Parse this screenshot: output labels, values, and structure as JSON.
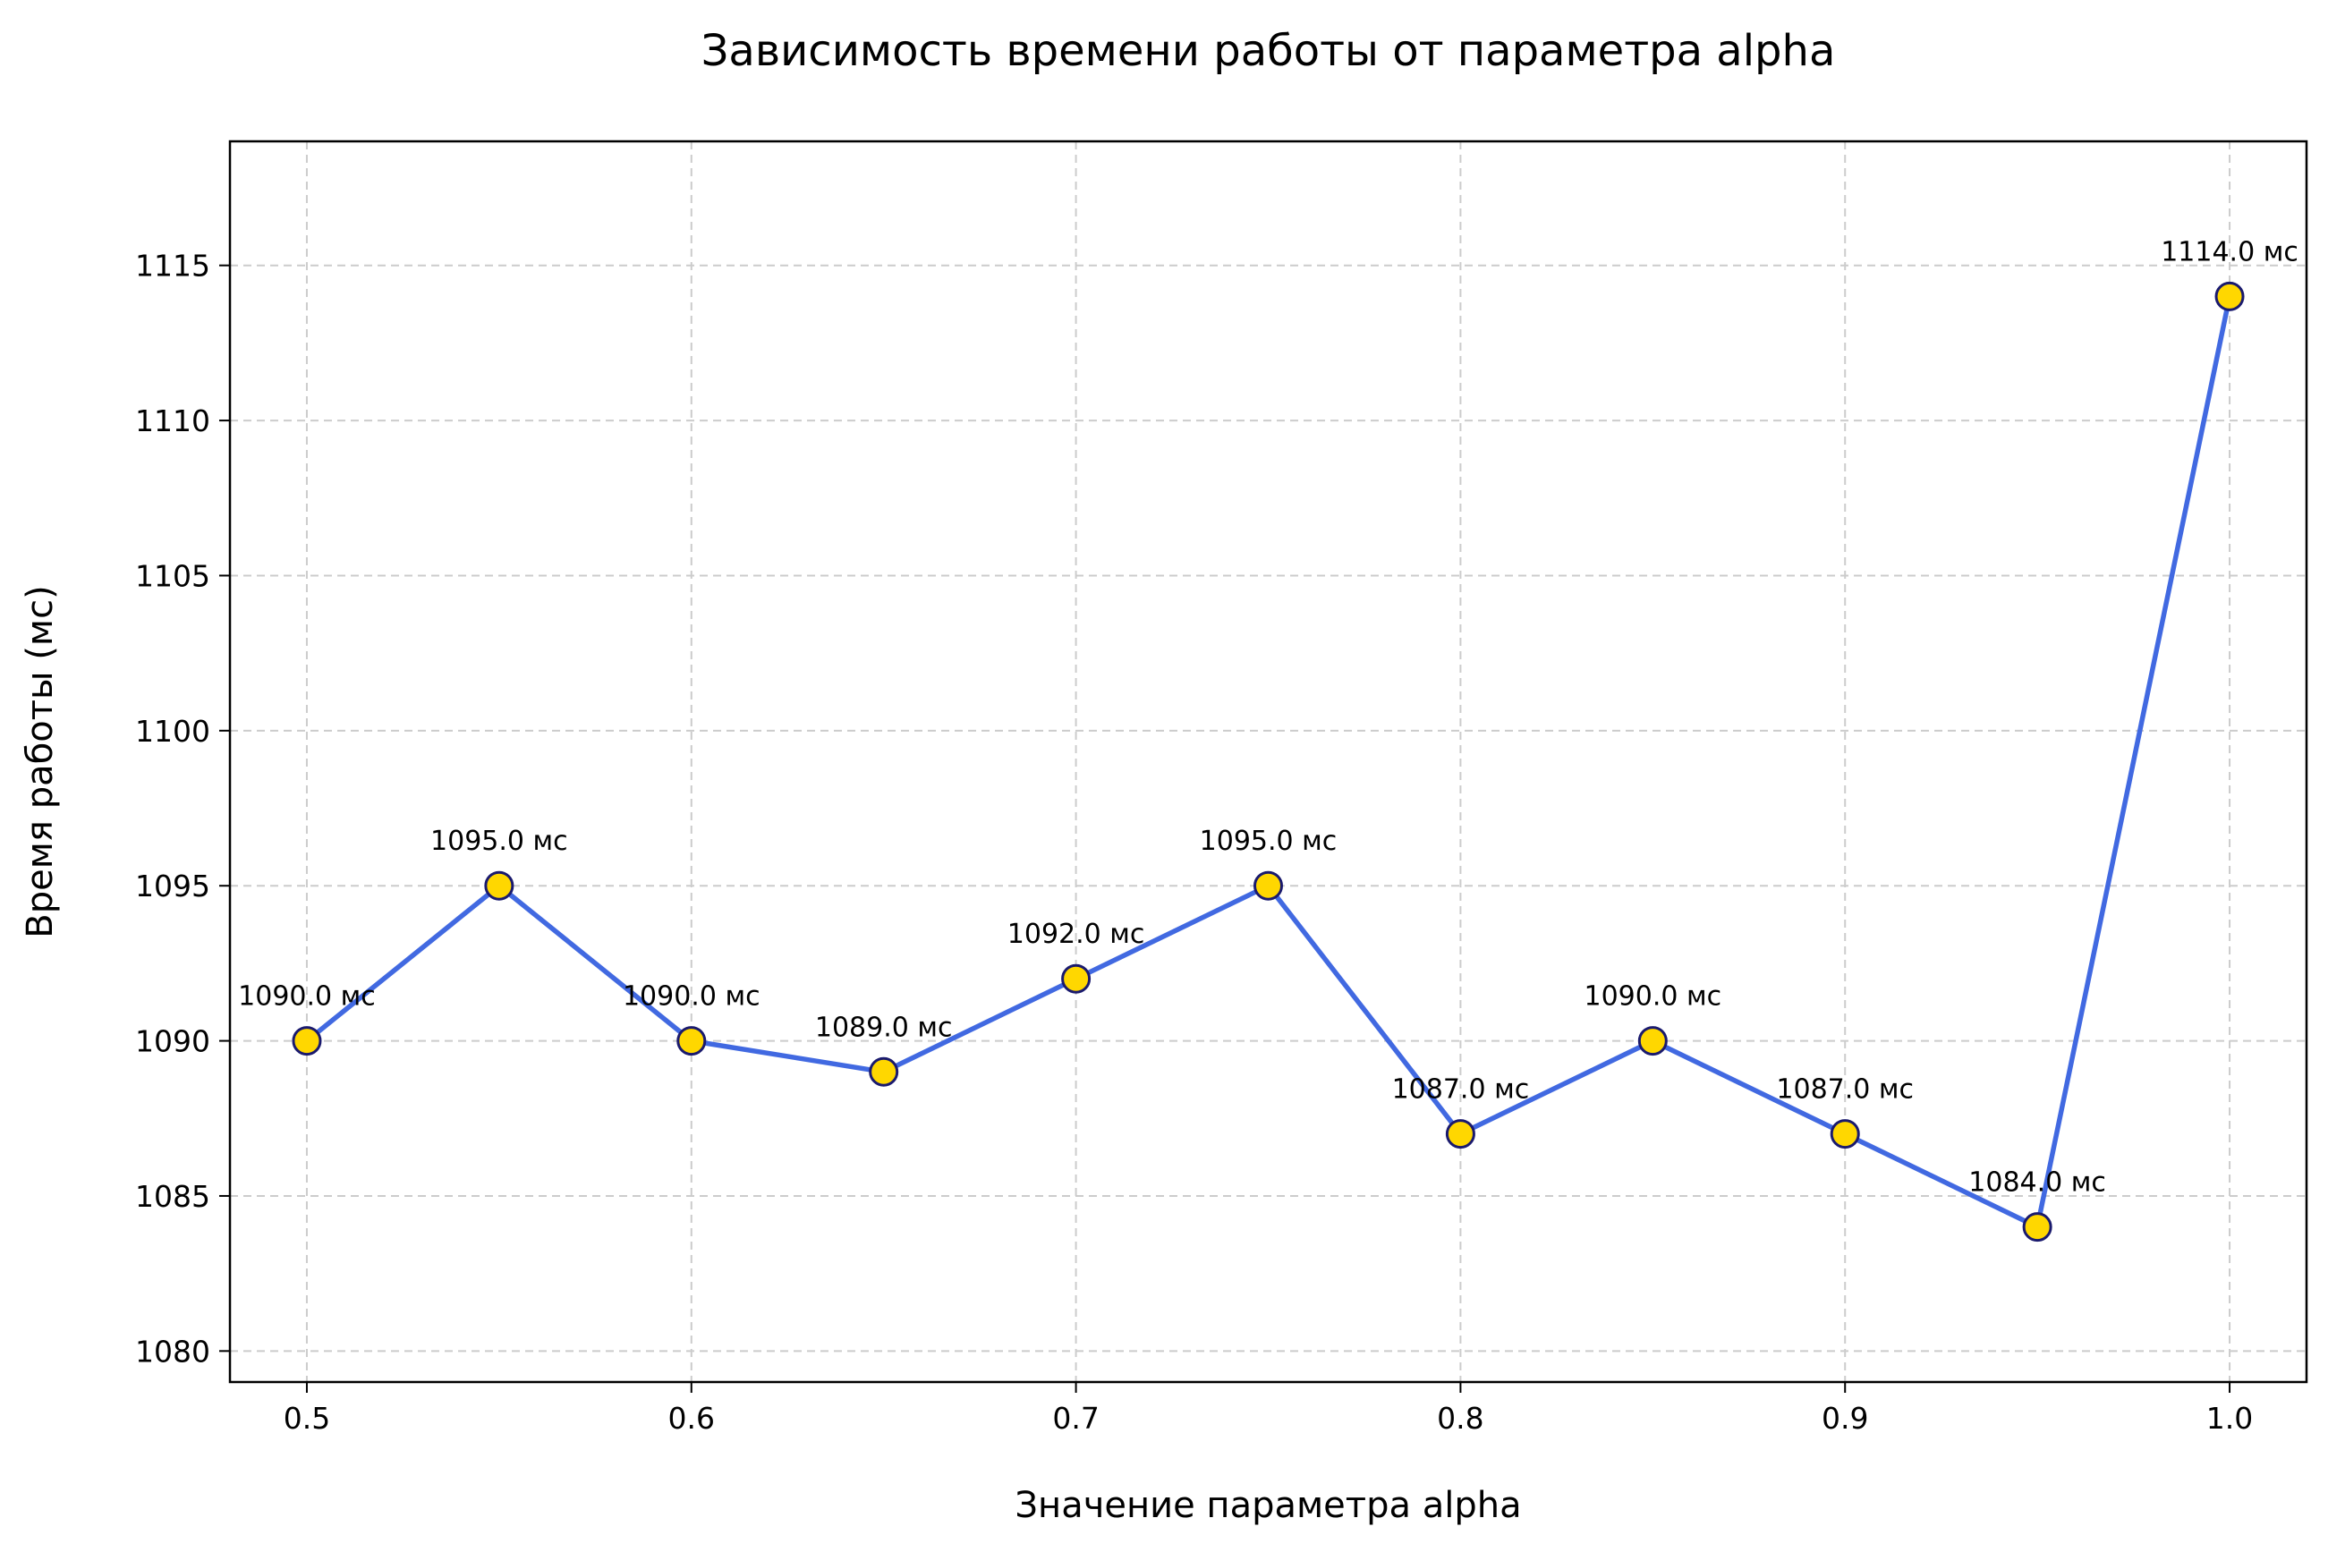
{
  "chart_data": {
    "type": "line",
    "title": "Зависимость времени работы от параметра alpha",
    "xlabel": "Значение параметра alpha",
    "ylabel": "Время работы (мс)",
    "x": [
      0.5,
      0.55,
      0.6,
      0.65,
      0.7,
      0.75,
      0.8,
      0.85,
      0.9,
      0.95,
      1.0
    ],
    "values": [
      1090,
      1095,
      1090,
      1089,
      1092,
      1095,
      1087,
      1090,
      1087,
      1084,
      1114
    ],
    "data_labels": [
      "1090.0 мс",
      "1095.0 мс",
      "1090.0 мс",
      "1089.0 мс",
      "1092.0 мс",
      "1095.0 мс",
      "1087.0 мс",
      "1090.0 мс",
      "1087.0 мс",
      "1084.0 мс",
      "1114.0 мс"
    ],
    "xticks": [
      "0.5",
      "0.6",
      "0.7",
      "0.8",
      "0.9",
      "1.0"
    ],
    "xtick_values": [
      0.5,
      0.6,
      0.7,
      0.8,
      0.9,
      1.0
    ],
    "yticks": [
      "1080",
      "1085",
      "1090",
      "1095",
      "1100",
      "1105",
      "1110",
      "1115"
    ],
    "ytick_values": [
      1080,
      1085,
      1090,
      1095,
      1100,
      1105,
      1110,
      1115
    ],
    "xlim": [
      0.48,
      1.02
    ],
    "ylim": [
      1079,
      1119
    ],
    "grid": true,
    "colors": {
      "line": "#4169e1",
      "marker_fill": "#ffd700",
      "marker_edge": "#1a1a6e"
    }
  }
}
